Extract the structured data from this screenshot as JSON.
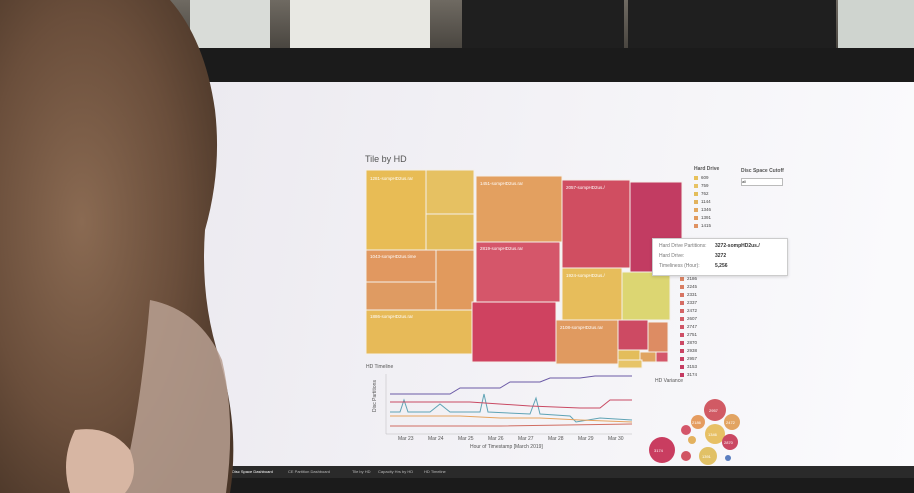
{
  "dashboard": {
    "title": "Tile by HD",
    "treemap_labels": [
      "1281-sompHD2us.rar",
      "1451-sompHD2us.rar",
      "2057-sompHD2us./",
      "2819-sompHD2us.rar",
      "1043-sompHD2us.time",
      "1924-sompHD2us./",
      "1886-sompHD2us.rar",
      "2108-sompHD2us.rar"
    ],
    "hard_drive_legend": {
      "title": "Hard Drive",
      "items": [
        "609",
        "759",
        "762",
        "1144",
        "1346",
        "1391",
        "1415"
      ],
      "items_lower": [
        "2013",
        "2186",
        "2245",
        "2331",
        "2337",
        "2472",
        "2607",
        "2747",
        "2751",
        "2870",
        "2938",
        "2957",
        "3153",
        "3174"
      ]
    },
    "disc_space_cutoff": {
      "label": "Disc Space Cutoff",
      "value": "all"
    },
    "tooltip": {
      "rows": [
        {
          "label": "Hard Drive Partitions:",
          "value": "3272-sompHD2us./"
        },
        {
          "label": "Hard Drive:",
          "value": "3272"
        },
        {
          "label": "Timeliness (Hour):",
          "value": "5,256"
        }
      ]
    },
    "timeline": {
      "title": "HD Timeline",
      "ylabel": "Disc Partitions",
      "xlabel": "Hour of Timestamp [March 2019]",
      "ticks": [
        "Mar 23",
        "Mar 24",
        "Mar 25",
        "Mar 26",
        "Mar 27",
        "Mar 28",
        "Mar 29",
        "Mar 30"
      ]
    },
    "bubble_title": "HD Variance",
    "bubble_labels": [
      "2957",
      "2186",
      "1346",
      "3174",
      "2870",
      "1391",
      "2472"
    ],
    "tabs": [
      "Disc Space Dashboard",
      "CE Partition Dashboard",
      "Tile by HD",
      "Capacity Hrs by HD",
      "HD Timeline"
    ]
  },
  "colors": {
    "yellow": "#e6be5a",
    "light_yellow": "#ddd673",
    "orange": "#e39a5d",
    "red": "#d15060",
    "crimson": "#c63d60"
  }
}
